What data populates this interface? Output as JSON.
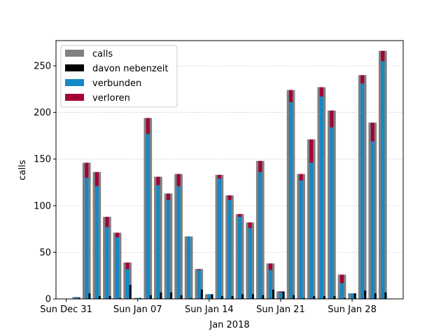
{
  "chart_data": {
    "type": "bar",
    "title": "",
    "xlabel": "Jan 2018",
    "ylabel": "calls",
    "ylim": [
      0,
      277
    ],
    "xlim": [
      "2017-12-30",
      "2018-02-02"
    ],
    "grid": "horizontal dotted",
    "legend_position": "top-left",
    "yticks": [
      0,
      50,
      100,
      150,
      200,
      250
    ],
    "xticks": [
      {
        "date": "2017-12-31",
        "label": "Sun Dec 31"
      },
      {
        "date": "2018-01-07",
        "label": "Sun Jan 07"
      },
      {
        "date": "2018-01-14",
        "label": "Sun Jan 14"
      },
      {
        "date": "2018-01-21",
        "label": "Sun Jan 21"
      },
      {
        "date": "2018-01-28",
        "label": "Sun Jan 28"
      }
    ],
    "dates": [
      "2018-01-01",
      "2018-01-02",
      "2018-01-03",
      "2018-01-04",
      "2018-01-05",
      "2018-01-06",
      "2018-01-07",
      "2018-01-08",
      "2018-01-09",
      "2018-01-10",
      "2018-01-11",
      "2018-01-12",
      "2018-01-13",
      "2018-01-14",
      "2018-01-15",
      "2018-01-16",
      "2018-01-17",
      "2018-01-18",
      "2018-01-19",
      "2018-01-20",
      "2018-01-21",
      "2018-01-22",
      "2018-01-23",
      "2018-01-24",
      "2018-01-25",
      "2018-01-26",
      "2018-01-27",
      "2018-01-28",
      "2018-01-29",
      "2018-01-30",
      "2018-01-31"
    ],
    "series": [
      {
        "name": "calls",
        "color": "#808080",
        "values": [
          2,
          146,
          136,
          88,
          71,
          39,
          1,
          194,
          131,
          113,
          134,
          67,
          32,
          5,
          133,
          111,
          91,
          82,
          148,
          38,
          8,
          224,
          134,
          171,
          227,
          202,
          26,
          6,
          240,
          189,
          266
        ]
      },
      {
        "name": "davon nebenzeit",
        "color": "#000000",
        "values": [
          1,
          6,
          3,
          3,
          1,
          15,
          1,
          4,
          7,
          7,
          4,
          1,
          10,
          5,
          3,
          3,
          5,
          5,
          4,
          10,
          8,
          4,
          1,
          3,
          3,
          3,
          1,
          6,
          9,
          6,
          7
        ]
      },
      {
        "name": "verbunden",
        "color": "#1589C6",
        "values": [
          2,
          130,
          121,
          77,
          66,
          32,
          1,
          177,
          122,
          106,
          121,
          67,
          31,
          5,
          129,
          106,
          88,
          76,
          136,
          31,
          7,
          211,
          127,
          146,
          217,
          184,
          17,
          6,
          231,
          169,
          255
        ]
      },
      {
        "name": "verloren",
        "color": "#A50034",
        "values": [
          0,
          16,
          15,
          11,
          5,
          7,
          0,
          17,
          9,
          7,
          13,
          0,
          1,
          0,
          4,
          5,
          3,
          6,
          12,
          7,
          1,
          13,
          7,
          25,
          10,
          18,
          9,
          0,
          9,
          20,
          11
        ]
      }
    ]
  }
}
